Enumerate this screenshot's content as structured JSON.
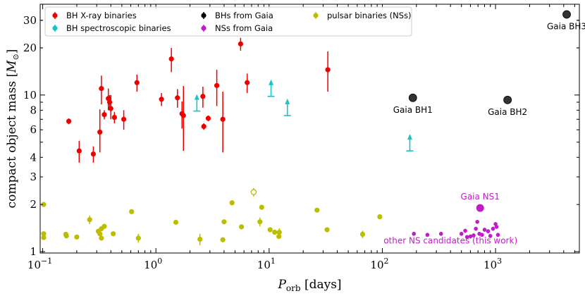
{
  "chart_data": {
    "type": "scatter",
    "xscale": "log",
    "yscale": "log",
    "xlim": [
      0.095,
      5500
    ],
    "ylim": [
      0.98,
      38
    ],
    "xlabel": {
      "main": "P",
      "sub": "orb",
      "rest": " [days]"
    },
    "ylabel": {
      "main": "compact object mass [",
      "sym": "M",
      "sub": "⊙",
      "end": "]"
    },
    "x_ticks": [
      {
        "value": 0.1,
        "label": "10",
        "exp": "−1"
      },
      {
        "value": 1,
        "label": "10",
        "exp": "0"
      },
      {
        "value": 10,
        "label": "10",
        "exp": "1"
      },
      {
        "value": 100,
        "label": "10",
        "exp": "2"
      },
      {
        "value": 1000,
        "label": "10",
        "exp": "3"
      }
    ],
    "y_ticks": [
      1,
      2,
      3,
      4,
      6,
      8,
      10,
      20,
      30
    ],
    "legend": [
      {
        "label": "BH X-ray binaries",
        "color": "#ee0000",
        "marker": "dot"
      },
      {
        "label": "BH spectroscopic binaries",
        "color": "#19c4c4",
        "marker": "dot"
      },
      {
        "label": "BHs from Gaia",
        "color": "#000000",
        "marker": "dot"
      },
      {
        "label": "NSs from Gaia",
        "color": "#c01cc8",
        "marker": "dot"
      },
      {
        "label": "pulsar binaries (NSs)",
        "color": "#bdbd00",
        "marker": "dot"
      }
    ],
    "series": [
      {
        "name": "BH X-ray binaries",
        "color": "#ee0000",
        "points": [
          {
            "x": 0.17,
            "y": 6.8,
            "lo": 0.3,
            "hi": 0.3
          },
          {
            "x": 0.21,
            "y": 4.4,
            "lo": 0.7,
            "hi": 0.7
          },
          {
            "x": 0.28,
            "y": 4.2,
            "lo": 0.5,
            "hi": 0.5
          },
          {
            "x": 0.32,
            "y": 5.8,
            "lo": 1.5,
            "hi": 2.3
          },
          {
            "x": 0.33,
            "y": 11,
            "lo": 2.3,
            "hi": 2.3
          },
          {
            "x": 0.35,
            "y": 7.5,
            "lo": 0.5,
            "hi": 0.5
          },
          {
            "x": 0.38,
            "y": 9.5,
            "lo": 1.5,
            "hi": 1.5
          },
          {
            "x": 0.4,
            "y": 8.2,
            "lo": 1.2,
            "hi": 1.8
          },
          {
            "x": 0.39,
            "y": 9,
            "lo": 1,
            "hi": 1
          },
          {
            "x": 0.43,
            "y": 7.2,
            "lo": 0.6,
            "hi": 0.6
          },
          {
            "x": 0.52,
            "y": 7,
            "lo": 1,
            "hi": 1
          },
          {
            "x": 0.68,
            "y": 12,
            "lo": 1.5,
            "hi": 1.5
          },
          {
            "x": 1.12,
            "y": 9.4,
            "lo": 0.9,
            "hi": 0.9
          },
          {
            "x": 1.37,
            "y": 17,
            "lo": 3,
            "hi": 3
          },
          {
            "x": 1.55,
            "y": 9.6,
            "lo": 1.3,
            "hi": 1.3
          },
          {
            "x": 1.7,
            "y": 7.6,
            "lo": 1.5,
            "hi": 1.5
          },
          {
            "x": 1.75,
            "y": 7.4,
            "lo": 3,
            "hi": 4
          },
          {
            "x": 2.6,
            "y": 9.8,
            "lo": 1.5,
            "hi": 1.5
          },
          {
            "x": 2.65,
            "y": 6.3,
            "lo": 0.3,
            "hi": 0.3
          },
          {
            "x": 2.9,
            "y": 7.1,
            "lo": 0.3,
            "hi": 0.3
          },
          {
            "x": 3.45,
            "y": 11.5,
            "lo": 3,
            "hi": 3
          },
          {
            "x": 3.9,
            "y": 7,
            "lo": 2.7,
            "hi": 3.5
          },
          {
            "x": 5.6,
            "y": 21.2,
            "lo": 2,
            "hi": 2
          },
          {
            "x": 6.4,
            "y": 12,
            "lo": 1.7,
            "hi": 1.7
          },
          {
            "x": 33,
            "y": 14.5,
            "lo": 4,
            "hi": 4.5
          }
        ]
      },
      {
        "name": "BH spectroscopic binaries (lower limits)",
        "color": "#19c4c4",
        "arrows": [
          {
            "x": 2.3,
            "y": 7.9
          },
          {
            "x": 10.4,
            "y": 9.8
          },
          {
            "x": 14.5,
            "y": 7.4
          },
          {
            "x": 175,
            "y": 4.4
          }
        ]
      },
      {
        "name": "BHs from Gaia",
        "color": "#000000",
        "points": [
          {
            "x": 186,
            "y": 9.6,
            "label": "Gaia BH1"
          },
          {
            "x": 1277,
            "y": 9.3,
            "label": "Gaia BH2"
          },
          {
            "x": 4250,
            "y": 32.7,
            "label": "Gaia BH3"
          }
        ]
      },
      {
        "name": "NSs from Gaia",
        "color": "#c01cc8",
        "highlight": {
          "x": 731,
          "y": 1.9,
          "label": "Gaia NS1"
        },
        "group_label": "other NS candidates (this work)",
        "points": [
          {
            "x": 190,
            "y": 1.3
          },
          {
            "x": 250,
            "y": 1.28
          },
          {
            "x": 330,
            "y": 1.3
          },
          {
            "x": 500,
            "y": 1.3
          },
          {
            "x": 540,
            "y": 1.36
          },
          {
            "x": 560,
            "y": 1.24
          },
          {
            "x": 600,
            "y": 1.25
          },
          {
            "x": 640,
            "y": 1.27
          },
          {
            "x": 670,
            "y": 1.4
          },
          {
            "x": 690,
            "y": 1.55
          },
          {
            "x": 720,
            "y": 1.3
          },
          {
            "x": 760,
            "y": 1.28
          },
          {
            "x": 800,
            "y": 1.38
          },
          {
            "x": 860,
            "y": 1.35
          },
          {
            "x": 900,
            "y": 1.26
          },
          {
            "x": 950,
            "y": 1.4
          },
          {
            "x": 1000,
            "y": 1.5
          },
          {
            "x": 1020,
            "y": 1.44
          },
          {
            "x": 1050,
            "y": 1.28
          }
        ]
      },
      {
        "name": "pulsar binaries (NSs)",
        "color": "#bdbd00",
        "open_point": {
          "x": 7.3,
          "y": 2.4,
          "lo": 0.15,
          "hi": 0.15
        },
        "points": [
          {
            "x": 0.102,
            "y": 2.0
          },
          {
            "x": 0.102,
            "y": 1.3
          },
          {
            "x": 0.102,
            "y": 1.23
          },
          {
            "x": 0.16,
            "y": 1.29
          },
          {
            "x": 0.162,
            "y": 1.26
          },
          {
            "x": 0.2,
            "y": 1.24
          },
          {
            "x": 0.26,
            "y": 1.6,
            "lo": 0.1,
            "hi": 0.1
          },
          {
            "x": 0.31,
            "y": 1.35
          },
          {
            "x": 0.32,
            "y": 1.3
          },
          {
            "x": 0.33,
            "y": 1.4
          },
          {
            "x": 0.35,
            "y": 1.45
          },
          {
            "x": 0.33,
            "y": 1.22
          },
          {
            "x": 0.42,
            "y": 1.3
          },
          {
            "x": 0.61,
            "y": 1.8
          },
          {
            "x": 0.7,
            "y": 1.22,
            "lo": 0.08,
            "hi": 0.08
          },
          {
            "x": 1.5,
            "y": 1.54
          },
          {
            "x": 2.45,
            "y": 1.2,
            "lo": 0.1,
            "hi": 0.1
          },
          {
            "x": 4.0,
            "y": 1.55
          },
          {
            "x": 4.7,
            "y": 2.05
          },
          {
            "x": 3.9,
            "y": 1.19
          },
          {
            "x": 5.7,
            "y": 1.44
          },
          {
            "x": 8.6,
            "y": 1.92
          },
          {
            "x": 8.3,
            "y": 1.55,
            "lo": 0.1,
            "hi": 0.1
          },
          {
            "x": 10.2,
            "y": 1.38
          },
          {
            "x": 11.2,
            "y": 1.33
          },
          {
            "x": 12.3,
            "y": 1.33,
            "lo": 0.08,
            "hi": 0.08
          },
          {
            "x": 12.2,
            "y": 1.25
          },
          {
            "x": 26.5,
            "y": 1.84
          },
          {
            "x": 32.5,
            "y": 1.38
          },
          {
            "x": 67,
            "y": 1.29,
            "lo": 0.07,
            "hi": 0.07
          },
          {
            "x": 95,
            "y": 1.67
          }
        ]
      }
    ]
  }
}
